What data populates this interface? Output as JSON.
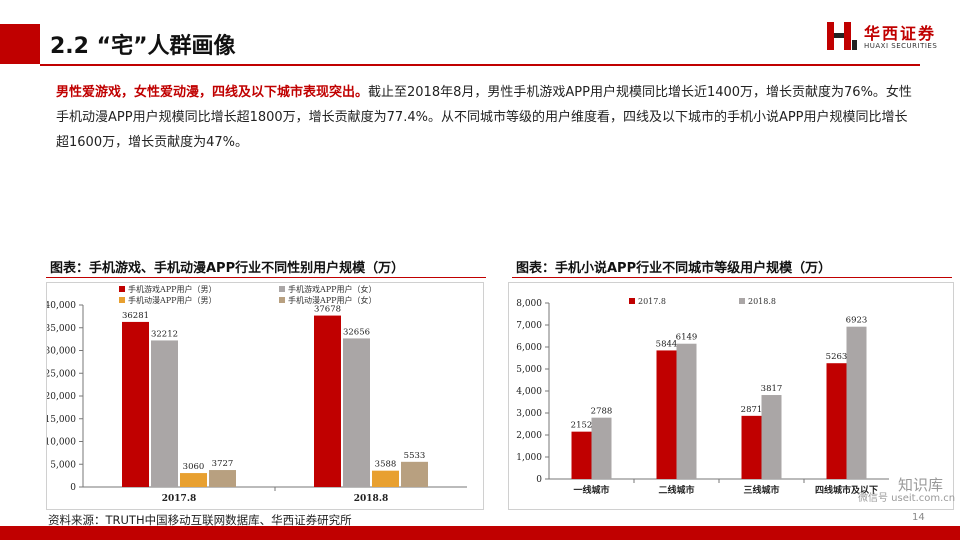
{
  "header": {
    "title": "2.2 “宅”人群画像",
    "logo_cn": "华西证券",
    "logo_en": "HUAXI SECURITIES"
  },
  "paragraph": {
    "highlight": "男性爱游戏，女性爱动漫，四线及以下城市表现突出。",
    "body": "截止至2018年8月，男性手机游戏APP用户规模同比增长近1400万，增长贡献度为76%。女性手机动漫APP用户规模同比增长超1800万，增长贡献度为77.4%。从不同城市等级的用户维度看，四线及以下城市的手机小说APP用户规模同比增长超1600万，增长贡献度为47%。"
  },
  "charts": {
    "left_title": "图表：手机游戏、手机动漫APP行业不同性别用户规模（万）",
    "right_title": "图表：手机小说APP行业不同城市等级用户规模（万）"
  },
  "footer": {
    "source": "资料来源：TRUTH中国移动互联网数据库、华西证券研究所",
    "page": "14",
    "watermark_line1": "知识库",
    "watermark_line2": "微信号 useit.com.cn"
  },
  "chart_data": [
    {
      "type": "bar",
      "categories": [
        "2017.8",
        "2018.8"
      ],
      "series": [
        {
          "name": "手机游戏APP用户（男）",
          "values": [
            36281,
            37678
          ],
          "color": "#c00000"
        },
        {
          "name": "手机游戏APP用户（女）",
          "values": [
            32212,
            32656
          ],
          "color": "#aaa6a6"
        },
        {
          "name": "手机动漫APP用户（男）",
          "values": [
            3060,
            3588
          ],
          "color": "#e8a030"
        },
        {
          "name": "手机动漫APP用户（女）",
          "values": [
            3727,
            5533
          ],
          "color": "#b8a080"
        }
      ],
      "ylim": [
        0,
        40000
      ],
      "yticks": [
        "0",
        "5,000",
        "10,000",
        "15,000",
        "20,000",
        "25,000",
        "30,000",
        "35,000",
        "40,000"
      ],
      "legend": "top"
    },
    {
      "type": "bar",
      "categories": [
        "一线城市",
        "二线城市",
        "三线城市",
        "四线城市及以下"
      ],
      "series": [
        {
          "name": "2017.8",
          "values": [
            2152,
            5844,
            2871,
            5263
          ],
          "color": "#c00000"
        },
        {
          "name": "2018.8",
          "values": [
            2788,
            6149,
            3817,
            6923
          ],
          "color": "#aaa6a6"
        }
      ],
      "ylim": [
        0,
        8000
      ],
      "yticks": [
        "0",
        "1,000",
        "2,000",
        "3,000",
        "4,000",
        "5,000",
        "6,000",
        "7,000",
        "8,000"
      ],
      "legend": "top"
    }
  ]
}
